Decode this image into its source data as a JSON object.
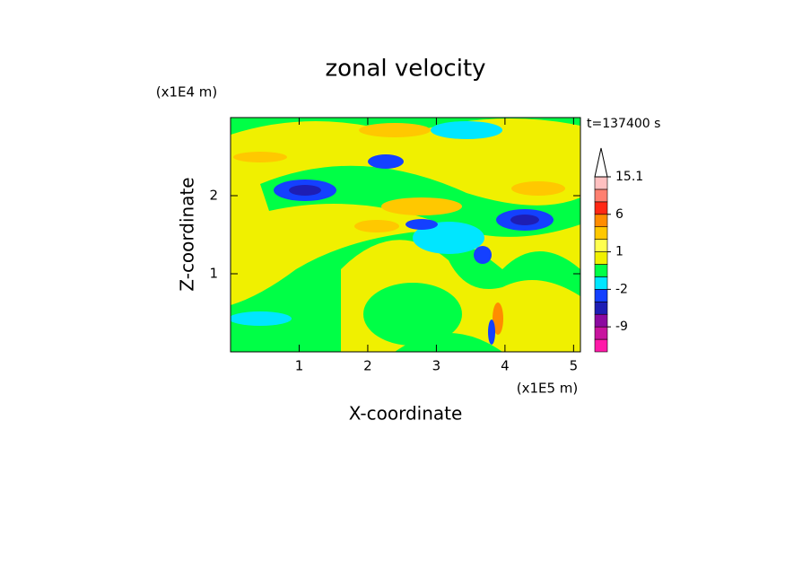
{
  "chart_data": {
    "type": "contour",
    "title": "zonal velocity",
    "x_label": "X-coordinate",
    "y_label": "Z-coordinate",
    "x_unit": "(x1E5 m)",
    "y_unit": "(x1E4 m)",
    "time_label": "t=137400 s",
    "xlim": [
      0,
      5.1
    ],
    "xticks": [
      1,
      2,
      3,
      4,
      5
    ],
    "ylim": [
      0,
      3
    ],
    "yticks": [
      1,
      2
    ],
    "colorbar": {
      "levels": [
        -15,
        -12,
        -9,
        -6,
        -3,
        -2,
        -1,
        0,
        1,
        2,
        3,
        6,
        9,
        12,
        15.1
      ],
      "colors": [
        "#ff1aa8",
        "#c8149e",
        "#8c0aa0",
        "#1e1eb4",
        "#1440ff",
        "#00e6ff",
        "#00ff46",
        "#f0f000",
        "#ffff50",
        "#ffc800",
        "#ff8c00",
        "#ff2814",
        "#ff8070",
        "#ffc0c0"
      ],
      "ticks": [
        -9,
        -2,
        1,
        6,
        15.1
      ]
    }
  }
}
